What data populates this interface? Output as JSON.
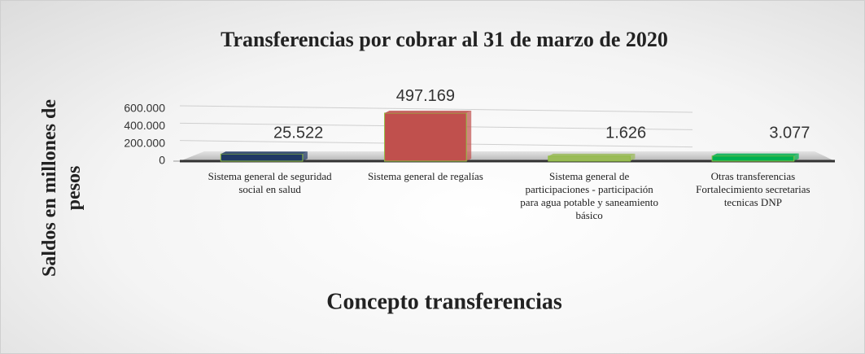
{
  "chart_data": {
    "type": "bar3d",
    "title": "Transferencias por cobrar al 31 de marzo de 2020",
    "y_label": "Saldos en millones de pesos",
    "x_label": "Concepto transferencias",
    "categories": [
      "Sistema general de seguridad social en salud",
      "Sistema general de regalías",
      "Sistema general de participaciones - participación para agua potable y saneamiento básico",
      "Otras transferencias Fortalecimiento secretarias tecnicas DNP"
    ],
    "values": [
      25522,
      497169,
      1626,
      3077
    ],
    "value_labels": [
      "25.522",
      "497.169",
      "1.626",
      "3.077"
    ],
    "colors": [
      "#1f3864",
      "#c0504d",
      "#9bbb59",
      "#00b050"
    ],
    "ylim": [
      0,
      600000
    ],
    "yticks": [
      0,
      {
        "value": 200000,
        "label": "200.000"
      },
      {
        "value": 400000,
        "label": "400.000"
      },
      {
        "value": 600000,
        "label": "600.000"
      }
    ],
    "grid": true
  }
}
